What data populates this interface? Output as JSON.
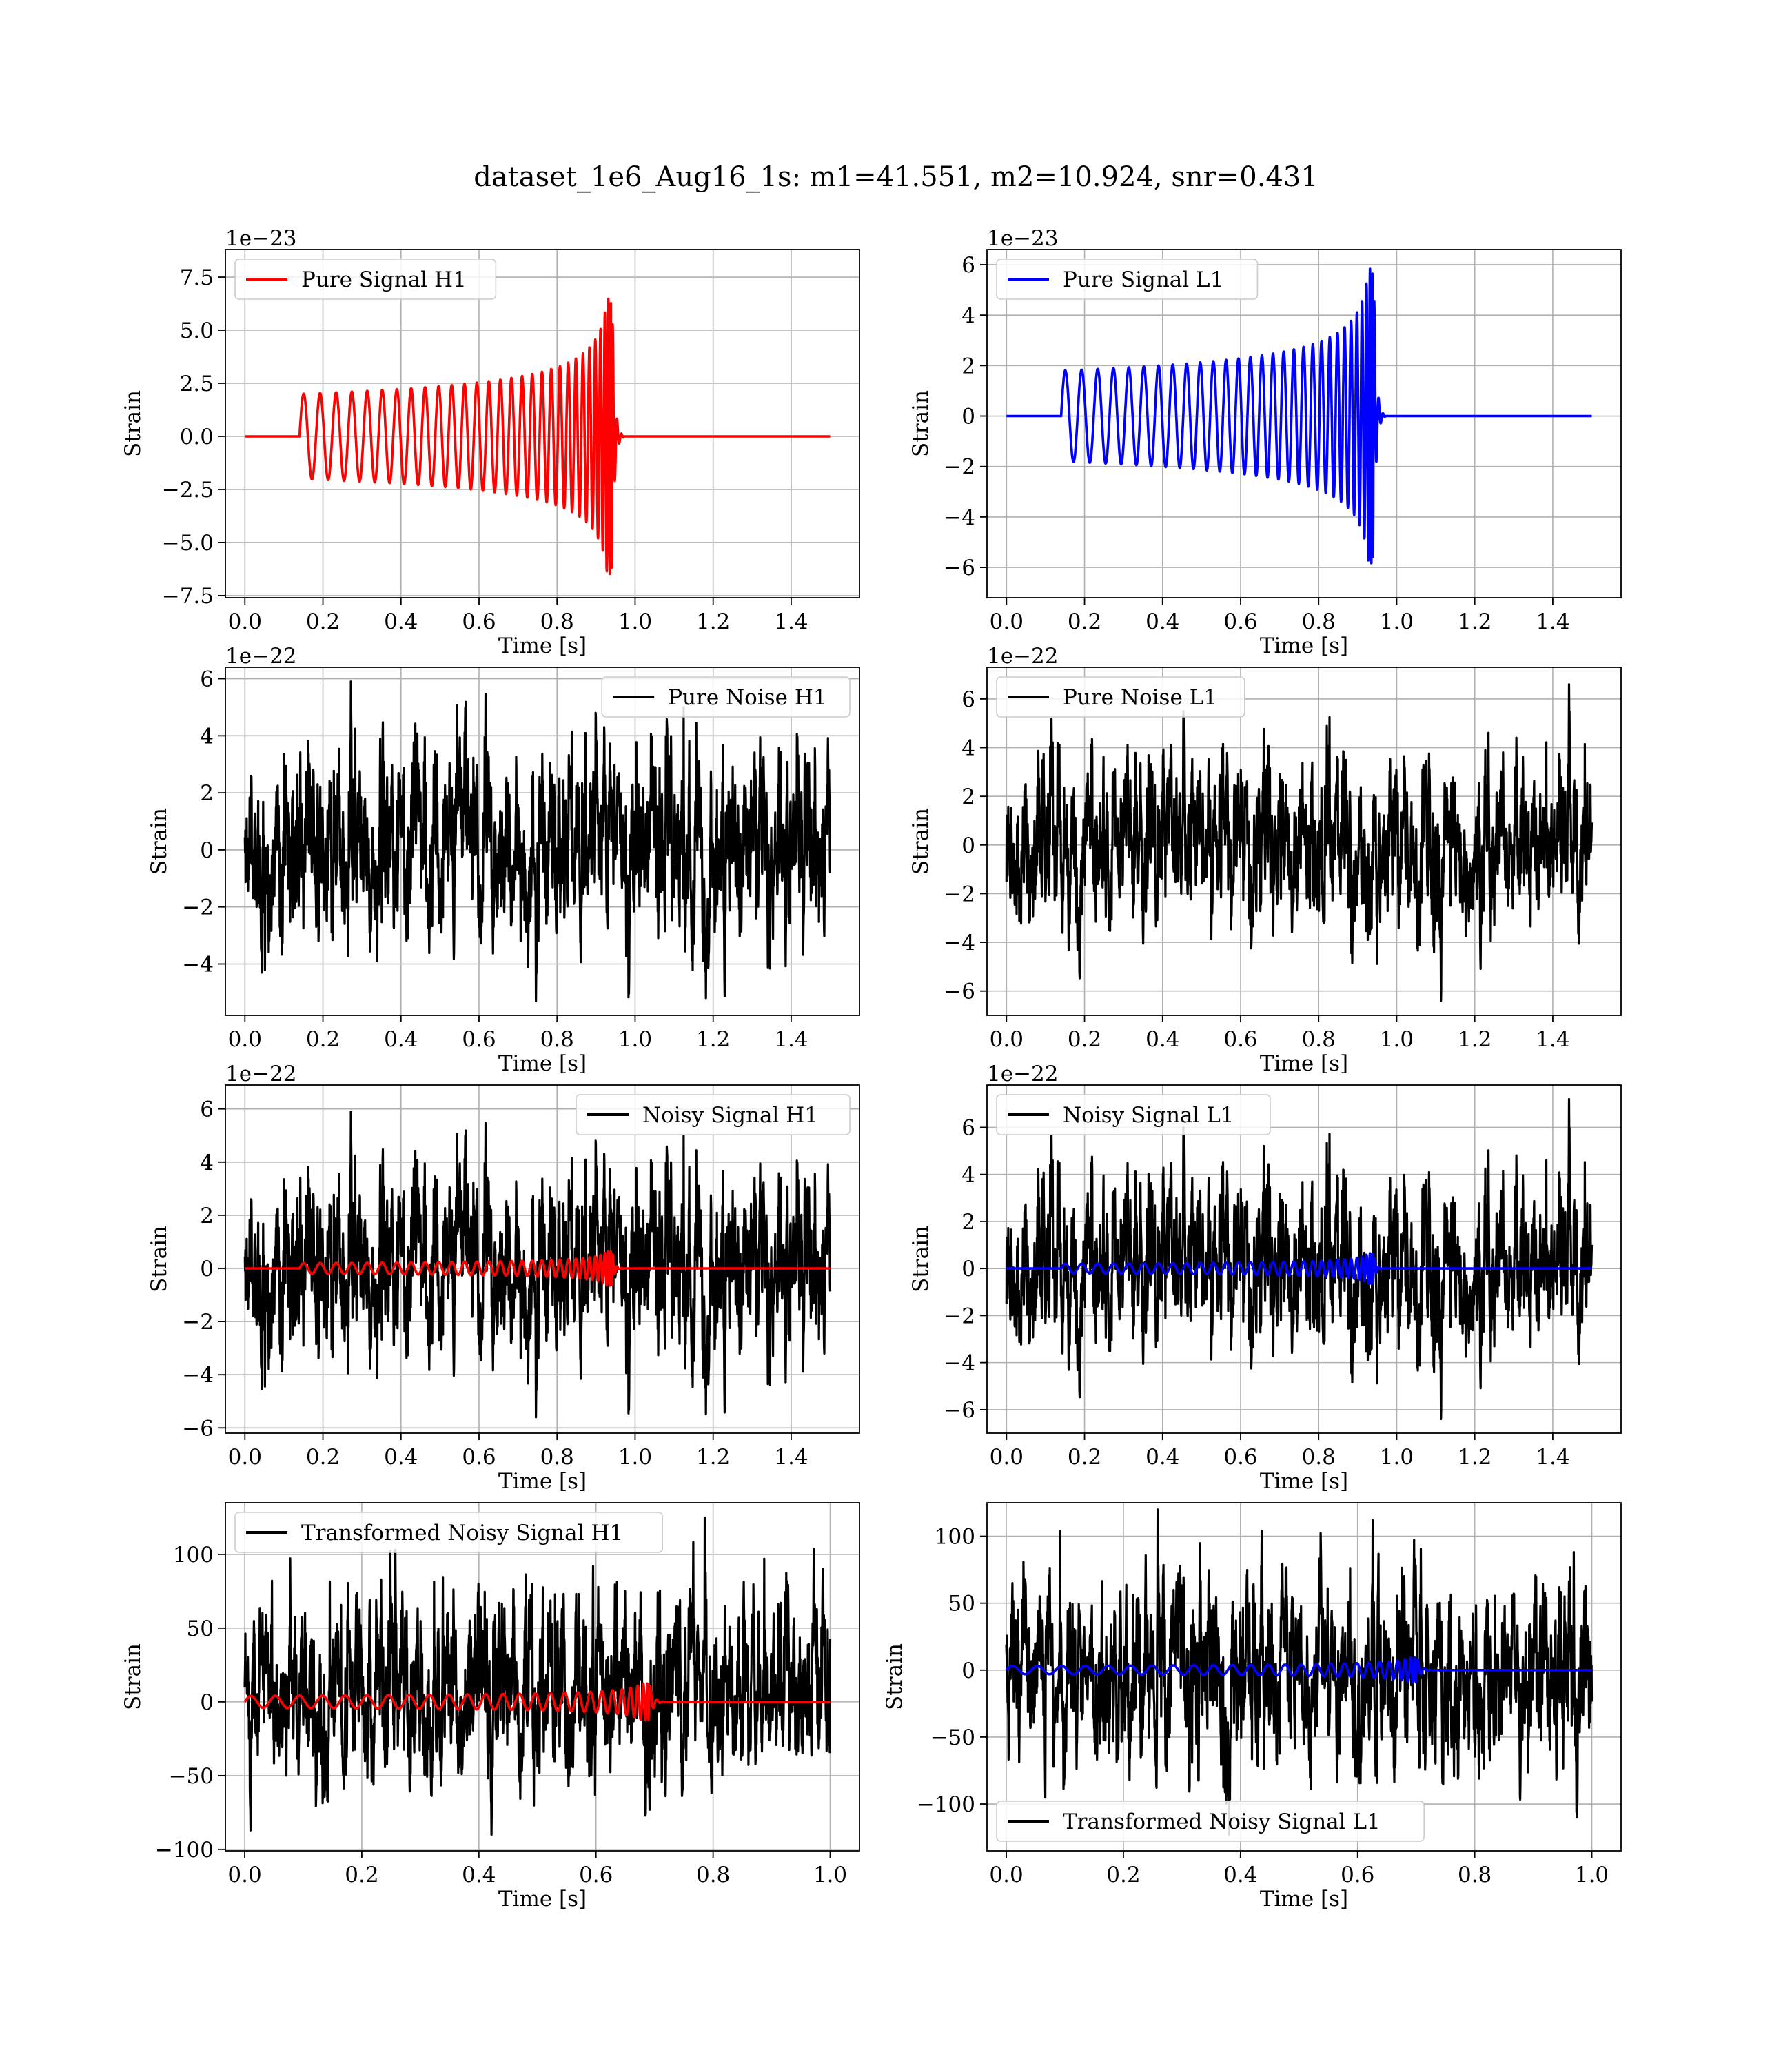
{
  "figure": {
    "suptitle": "dataset_1e6_Aug16_1s: m1=41.551, m2=10.924, snr=0.431"
  },
  "colors": {
    "h1_signal": "#ff0000",
    "l1_signal": "#0000ff",
    "noise": "#000000",
    "grid": "#b0b0b0"
  },
  "chart_data": [
    {
      "id": "pure-signal-h1",
      "type": "line",
      "title": "",
      "xlabel": "Time [s]",
      "ylabel": "Strain",
      "offset_text": "1e−23",
      "xlim": [
        -0.05,
        1.575
      ],
      "ylim": [
        -7.6,
        8.8
      ],
      "xticks": [
        0.0,
        0.2,
        0.4,
        0.6,
        0.8,
        1.0,
        1.2,
        1.4
      ],
      "xtick_labels": [
        "0.0",
        "0.2",
        "0.4",
        "0.6",
        "0.8",
        "1.0",
        "1.2",
        "1.4"
      ],
      "yticks": [
        -7.5,
        -5.0,
        -2.5,
        0.0,
        2.5,
        5.0,
        7.5
      ],
      "ytick_labels": [
        "−7.5",
        "−5.0",
        "−2.5",
        "0.0",
        "2.5",
        "5.0",
        "7.5"
      ],
      "grid": true,
      "legend_position": "top-left",
      "series": [
        {
          "name": "Pure Signal H1",
          "color": "#ff0000",
          "kind": "chirp",
          "t_start": 0.14,
          "t_merge": 0.94,
          "t_end": 1.5,
          "amp_start": 2.0,
          "amp_peak": 8.1,
          "amp_min_peak": -6.9,
          "cycles": 30
        }
      ]
    },
    {
      "id": "pure-signal-l1",
      "type": "line",
      "title": "",
      "xlabel": "Time [s]",
      "ylabel": "Strain",
      "offset_text": "1e−23",
      "xlim": [
        -0.05,
        1.575
      ],
      "ylim": [
        -7.2,
        6.6
      ],
      "xticks": [
        0.0,
        0.2,
        0.4,
        0.6,
        0.8,
        1.0,
        1.2,
        1.4
      ],
      "xtick_labels": [
        "0.0",
        "0.2",
        "0.4",
        "0.6",
        "0.8",
        "1.0",
        "1.2",
        "1.4"
      ],
      "yticks": [
        -6,
        -4,
        -2,
        0,
        2,
        4,
        6
      ],
      "ytick_labels": [
        "−6",
        "−4",
        "−2",
        "0",
        "2",
        "4",
        "6"
      ],
      "grid": true,
      "legend_position": "top-left",
      "series": [
        {
          "name": "Pure Signal L1",
          "color": "#0000ff",
          "kind": "chirp",
          "t_start": 0.14,
          "t_merge": 0.94,
          "t_end": 1.5,
          "amp_start": 1.8,
          "amp_peak": 6.0,
          "amp_min_peak": -7.0,
          "cycles": 30
        }
      ]
    },
    {
      "id": "pure-noise-h1",
      "type": "line",
      "title": "",
      "xlabel": "Time [s]",
      "ylabel": "Strain",
      "offset_text": "1e−22",
      "xlim": [
        -0.05,
        1.575
      ],
      "ylim": [
        -5.8,
        6.4
      ],
      "xticks": [
        0.0,
        0.2,
        0.4,
        0.6,
        0.8,
        1.0,
        1.2,
        1.4
      ],
      "xtick_labels": [
        "0.0",
        "0.2",
        "0.4",
        "0.6",
        "0.8",
        "1.0",
        "1.2",
        "1.4"
      ],
      "yticks": [
        -4,
        -2,
        0,
        2,
        4,
        6
      ],
      "ytick_labels": [
        "−4",
        "−2",
        "0",
        "2",
        "4",
        "6"
      ],
      "grid": true,
      "legend_position": "top-right",
      "series": [
        {
          "name": "Pure Noise H1",
          "color": "#000000",
          "kind": "noise",
          "t_start": 0.0,
          "t_end": 1.5,
          "max": 5.9,
          "min": -5.3,
          "seed": 11
        }
      ]
    },
    {
      "id": "pure-noise-l1",
      "type": "line",
      "title": "",
      "xlabel": "Time [s]",
      "ylabel": "Strain",
      "offset_text": "1e−22",
      "xlim": [
        -0.05,
        1.575
      ],
      "ylim": [
        -7.0,
        7.3
      ],
      "xticks": [
        0.0,
        0.2,
        0.4,
        0.6,
        0.8,
        1.0,
        1.2,
        1.4
      ],
      "xtick_labels": [
        "0.0",
        "0.2",
        "0.4",
        "0.6",
        "0.8",
        "1.0",
        "1.2",
        "1.4"
      ],
      "yticks": [
        -6,
        -4,
        -2,
        0,
        2,
        4,
        6
      ],
      "ytick_labels": [
        "−6",
        "−4",
        "−2",
        "0",
        "2",
        "4",
        "6"
      ],
      "grid": true,
      "legend_position": "top-left",
      "series": [
        {
          "name": "Pure Noise L1",
          "color": "#000000",
          "kind": "noise",
          "t_start": 0.0,
          "t_end": 1.5,
          "max": 6.6,
          "min": -6.4,
          "seed": 23
        }
      ]
    },
    {
      "id": "noisy-signal-h1",
      "type": "line",
      "title": "",
      "xlabel": "Time [s]",
      "ylabel": "Strain",
      "offset_text": "1e−22",
      "xlim": [
        -0.05,
        1.575
      ],
      "ylim": [
        -6.2,
        6.9
      ],
      "xticks": [
        0.0,
        0.2,
        0.4,
        0.6,
        0.8,
        1.0,
        1.2,
        1.4
      ],
      "xtick_labels": [
        "0.0",
        "0.2",
        "0.4",
        "0.6",
        "0.8",
        "1.0",
        "1.2",
        "1.4"
      ],
      "yticks": [
        -6,
        -4,
        -2,
        0,
        2,
        4,
        6
      ],
      "ytick_labels": [
        "−6",
        "−4",
        "−2",
        "0",
        "2",
        "4",
        "6"
      ],
      "grid": true,
      "legend_position": "top-right",
      "series": [
        {
          "name": "Noisy Signal H1",
          "color": "#000000",
          "kind": "noise",
          "t_start": 0.0,
          "t_end": 1.5,
          "max": 5.9,
          "min": -5.6,
          "seed": 11
        },
        {
          "name": "",
          "color": "#ff0000",
          "kind": "chirp",
          "t_start": 0.14,
          "t_merge": 0.94,
          "t_end": 1.5,
          "amp_start": 0.2,
          "amp_peak": 0.8,
          "amp_min_peak": -0.7,
          "cycles": 30
        }
      ]
    },
    {
      "id": "noisy-signal-l1",
      "type": "line",
      "title": "",
      "xlabel": "Time [s]",
      "ylabel": "Strain",
      "offset_text": "1e−22",
      "xlim": [
        -0.05,
        1.575
      ],
      "ylim": [
        -7.0,
        7.8
      ],
      "xticks": [
        0.0,
        0.2,
        0.4,
        0.6,
        0.8,
        1.0,
        1.2,
        1.4
      ],
      "xtick_labels": [
        "0.0",
        "0.2",
        "0.4",
        "0.6",
        "0.8",
        "1.0",
        "1.2",
        "1.4"
      ],
      "yticks": [
        -6,
        -4,
        -2,
        0,
        2,
        4,
        6
      ],
      "ytick_labels": [
        "−6",
        "−4",
        "−2",
        "0",
        "2",
        "4",
        "6"
      ],
      "grid": true,
      "legend_position": "top-left",
      "series": [
        {
          "name": "Noisy Signal L1",
          "color": "#000000",
          "kind": "noise",
          "t_start": 0.0,
          "t_end": 1.5,
          "max": 7.2,
          "min": -6.4,
          "seed": 23
        },
        {
          "name": "",
          "color": "#0000ff",
          "kind": "chirp",
          "t_start": 0.14,
          "t_merge": 0.94,
          "t_end": 1.5,
          "amp_start": 0.2,
          "amp_peak": 0.6,
          "amp_min_peak": -0.7,
          "cycles": 30
        }
      ]
    },
    {
      "id": "transformed-noisy-signal-h1",
      "type": "line",
      "title": "",
      "xlabel": "Time [s]",
      "ylabel": "Strain",
      "offset_text": "",
      "xlim": [
        -0.033,
        1.05
      ],
      "ylim": [
        -101,
        135
      ],
      "xticks": [
        0.0,
        0.2,
        0.4,
        0.6,
        0.8,
        1.0
      ],
      "xtick_labels": [
        "0.0",
        "0.2",
        "0.4",
        "0.6",
        "0.8",
        "1.0"
      ],
      "yticks": [
        -100,
        -50,
        0,
        50,
        100
      ],
      "ytick_labels": [
        "−100",
        "−50",
        "0",
        "50",
        "100"
      ],
      "grid": true,
      "legend_position": "top-left",
      "series": [
        {
          "name": "Transformed Noisy Signal H1",
          "color": "#000000",
          "kind": "noise",
          "t_start": 0.0,
          "t_end": 1.0,
          "max": 125,
          "min": -90,
          "seed": 37
        },
        {
          "name": "",
          "color": "#ff0000",
          "kind": "chirp",
          "t_start": 0.0,
          "t_merge": 0.69,
          "t_end": 1.0,
          "amp_start": 4,
          "amp_peak": 16,
          "amp_min_peak": -16,
          "cycles": 26
        }
      ]
    },
    {
      "id": "transformed-noisy-signal-l1",
      "type": "line",
      "title": "",
      "xlabel": "Time [s]",
      "ylabel": "Strain",
      "offset_text": "",
      "xlim": [
        -0.033,
        1.05
      ],
      "ylim": [
        -135,
        125
      ],
      "xticks": [
        0.0,
        0.2,
        0.4,
        0.6,
        0.8,
        1.0
      ],
      "xtick_labels": [
        "0.0",
        "0.2",
        "0.4",
        "0.6",
        "0.8",
        "1.0"
      ],
      "yticks": [
        -100,
        -50,
        0,
        50,
        100
      ],
      "ytick_labels": [
        "−100",
        "−50",
        "0",
        "50",
        "100"
      ],
      "grid": true,
      "legend_position": "bottom-left",
      "series": [
        {
          "name": "Transformed Noisy Signal L1",
          "color": "#000000",
          "kind": "noise",
          "t_start": 0.0,
          "t_end": 1.0,
          "max": 120,
          "min": -123,
          "seed": 41
        },
        {
          "name": "",
          "color": "#0000ff",
          "kind": "chirp",
          "t_start": 0.0,
          "t_merge": 0.7,
          "t_end": 1.0,
          "amp_start": 3,
          "amp_peak": 12,
          "amp_min_peak": -12,
          "cycles": 26
        }
      ]
    }
  ]
}
